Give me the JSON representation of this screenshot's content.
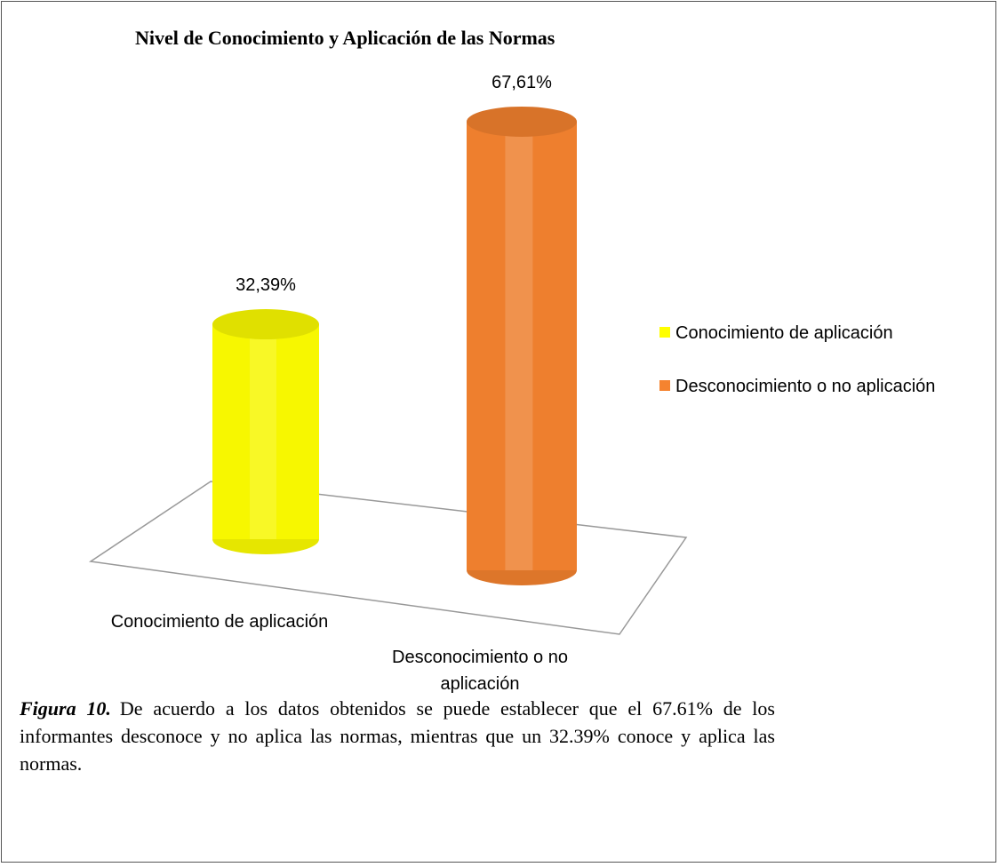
{
  "chart_data": {
    "type": "bar3d",
    "title": "Nivel de Conocimiento y Aplicación de las Normas",
    "categories": [
      "Conocimiento de aplicación",
      "Desconocimiento o no aplicación"
    ],
    "values": [
      32.39,
      67.61
    ],
    "value_labels": [
      "32,39%",
      "67,61%"
    ],
    "colors": [
      "#ffff00",
      "#f5832f"
    ],
    "legend": "right"
  },
  "caption": {
    "label": "Figura 10.",
    "text": "De acuerdo a los datos obtenidos se puede establecer que el 67.61% de los informantes desconoce y no aplica las normas, mientras que un 32.39% conoce y aplica las normas."
  }
}
